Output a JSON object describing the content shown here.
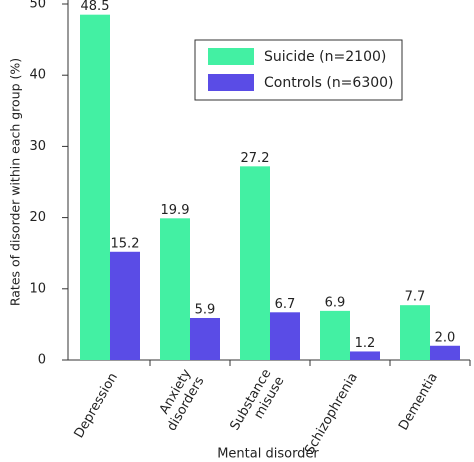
{
  "chart_data": {
    "type": "bar",
    "y_label": "Rates of disorder within each group (%)",
    "x_label": "Mental disorder",
    "categories": [
      "Depression",
      "Anxiety disorders",
      "Substance misuse",
      "Schizophrenia",
      "Dementia"
    ],
    "series": [
      {
        "name": "Suicide (n=2100)",
        "color": "#43f0a3",
        "values": [
          48.5,
          19.9,
          27.2,
          6.9,
          7.7
        ]
      },
      {
        "name": "Controls (n=6300)",
        "color": "#5a4ce6",
        "values": [
          15.2,
          5.9,
          6.7,
          1.2,
          2.0
        ],
        "value_labels": [
          "15.2",
          "5.9",
          "6.7",
          "1.2",
          "2.0"
        ]
      }
    ],
    "ylim": [
      0,
      50
    ],
    "yticks": [
      0,
      10,
      20,
      30,
      40,
      50
    ],
    "legend": "upper right"
  }
}
